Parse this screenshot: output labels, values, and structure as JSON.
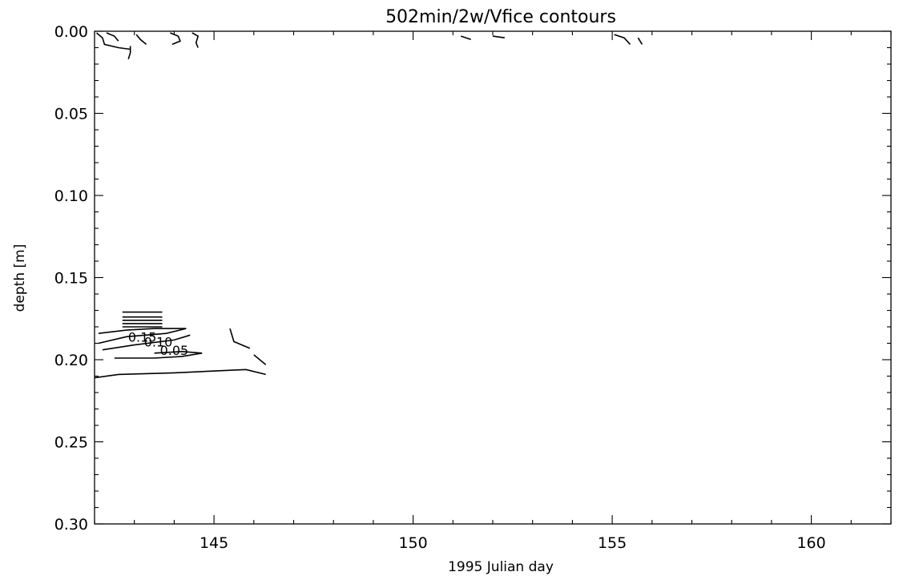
{
  "chart_data": {
    "type": "contour",
    "title": "502min/2w/Vfice contours",
    "xlabel": "1995 Julian day",
    "ylabel": "depth [m]",
    "xlim": [
      142,
      162
    ],
    "ylim": [
      0.3,
      0.0
    ],
    "y_inverted": true,
    "x_major_ticks": [
      145,
      150,
      155,
      160
    ],
    "x_minor_step": 1,
    "y_major_ticks": [
      0.0,
      0.05,
      0.1,
      0.15,
      0.2,
      0.25,
      0.3
    ],
    "y_minor_step": 0.01,
    "y_tick_format": 2,
    "grid": false,
    "contour_labels": [
      {
        "text": "0.15",
        "x": 143.2,
        "y": 0.189
      },
      {
        "text": "0.10",
        "x": 143.6,
        "y": 0.192
      },
      {
        "text": "0.05",
        "x": 144.0,
        "y": 0.197
      }
    ],
    "contours": [
      {
        "level": 0.2,
        "points": [
          [
            142.0,
            0.211
          ],
          [
            142.6,
            0.209
          ],
          [
            144.0,
            0.208
          ],
          [
            145.8,
            0.206
          ],
          [
            146.3,
            0.209
          ]
        ]
      },
      {
        "level": 0.05,
        "points": [
          [
            142.5,
            0.199
          ],
          [
            143.5,
            0.199
          ],
          [
            144.2,
            0.198
          ],
          [
            144.7,
            0.196
          ],
          [
            144.2,
            0.195
          ],
          [
            143.5,
            0.196
          ]
        ]
      },
      {
        "level": 0.1,
        "points": [
          [
            142.2,
            0.194
          ],
          [
            143.0,
            0.191
          ],
          [
            144.0,
            0.188
          ],
          [
            144.4,
            0.185
          ]
        ]
      },
      {
        "level": 0.15,
        "points": [
          [
            142.1,
            0.19
          ],
          [
            142.8,
            0.186
          ],
          [
            143.8,
            0.184
          ],
          [
            144.3,
            0.181
          ]
        ]
      },
      {
        "level": 0.2,
        "points": [
          [
            142.1,
            0.184
          ],
          [
            142.8,
            0.182
          ],
          [
            143.5,
            0.181
          ],
          [
            144.3,
            0.181
          ]
        ]
      },
      {
        "level": 0.0,
        "points": [
          [
            145.4,
            0.181
          ],
          [
            145.5,
            0.189
          ],
          [
            145.9,
            0.193
          ]
        ]
      },
      {
        "level": 0.0,
        "points": [
          [
            146.0,
            0.197
          ],
          [
            146.3,
            0.203
          ]
        ]
      },
      {
        "level": 0.3,
        "points": [
          [
            142.7,
            0.171
          ],
          [
            143.7,
            0.171
          ]
        ]
      },
      {
        "level": 0.3,
        "points": [
          [
            142.7,
            0.174
          ],
          [
            143.7,
            0.174
          ]
        ]
      },
      {
        "level": 0.3,
        "points": [
          [
            142.7,
            0.176
          ],
          [
            143.7,
            0.176
          ]
        ]
      },
      {
        "level": 0.3,
        "points": [
          [
            142.7,
            0.178
          ],
          [
            143.7,
            0.178
          ]
        ]
      },
      {
        "level": 0.3,
        "points": [
          [
            142.7,
            0.18
          ],
          [
            143.7,
            0.18
          ]
        ]
      },
      {
        "level": 0.0,
        "points": [
          [
            142.05,
            0.001
          ],
          [
            142.2,
            0.004
          ],
          [
            142.25,
            0.008
          ],
          [
            142.6,
            0.01
          ],
          [
            142.9,
            0.011
          ]
        ]
      },
      {
        "level": 0.0,
        "points": [
          [
            142.3,
            0.001
          ],
          [
            142.5,
            0.003
          ],
          [
            142.6,
            0.006
          ]
        ]
      },
      {
        "level": 0.0,
        "points": [
          [
            142.9,
            0.009
          ],
          [
            142.9,
            0.013
          ],
          [
            142.85,
            0.017
          ]
        ]
      },
      {
        "level": 0.0,
        "points": [
          [
            143.05,
            0.002
          ],
          [
            143.15,
            0.005
          ],
          [
            143.3,
            0.008
          ]
        ]
      },
      {
        "level": 0.0,
        "points": [
          [
            143.9,
            0.001
          ],
          [
            144.1,
            0.003
          ],
          [
            144.15,
            0.006
          ],
          [
            143.95,
            0.008
          ]
        ]
      },
      {
        "level": 0.0,
        "points": [
          [
            144.45,
            0.001
          ],
          [
            144.6,
            0.003
          ],
          [
            144.55,
            0.007
          ],
          [
            144.6,
            0.01
          ]
        ]
      },
      {
        "level": 0.0,
        "points": [
          [
            151.2,
            0.003
          ],
          [
            151.45,
            0.005
          ]
        ]
      },
      {
        "level": 0.0,
        "points": [
          [
            152.0,
            0.003
          ],
          [
            152.3,
            0.004
          ]
        ]
      },
      {
        "level": 0.0,
        "points": [
          [
            155.05,
            0.002
          ],
          [
            155.3,
            0.004
          ],
          [
            155.45,
            0.008
          ]
        ]
      },
      {
        "level": 0.0,
        "points": [
          [
            155.65,
            0.004
          ],
          [
            155.75,
            0.008
          ]
        ]
      }
    ]
  }
}
